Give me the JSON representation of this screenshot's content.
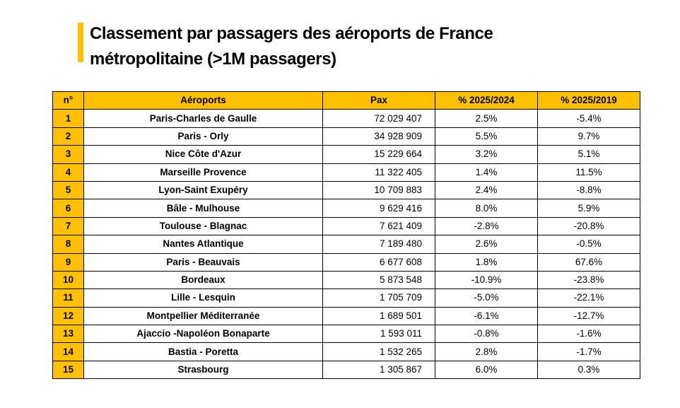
{
  "title": {
    "line1": "Classement par passagers des aéroports de France",
    "line2": "métropolitaine (>1M passagers)",
    "accent_color": "#FFC000"
  },
  "table": {
    "headers": [
      "n°",
      "Aéroports",
      "Pax",
      "% 2025/2024",
      "% 2025/2019"
    ],
    "rows": [
      [
        "1",
        "Paris-Charles de Gaulle",
        "72 029 407",
        "2.5%",
        "-5.4%"
      ],
      [
        "2",
        "Paris - Orly",
        "34 928 909",
        "5.5%",
        "9.7%"
      ],
      [
        "3",
        "Nice Côte d'Azur",
        "15 229 664",
        "3.2%",
        "5.1%"
      ],
      [
        "4",
        "Marseille Provence",
        "11 322 405",
        "1.4%",
        "11.5%"
      ],
      [
        "5",
        "Lyon-Saint Exupéry",
        "10 709 883",
        "2.4%",
        "-8.8%"
      ],
      [
        "6",
        "Bâle - Mulhouse",
        "9 629 416",
        "8.0%",
        "5.9%"
      ],
      [
        "7",
        "Toulouse - Blagnac",
        "7 621 409",
        "-2.8%",
        "-20.8%"
      ],
      [
        "8",
        "Nantes Atlantique",
        "7 189 480",
        "2.6%",
        "-0.5%"
      ],
      [
        "9",
        "Paris - Beauvais",
        "6 677 608",
        "1.8%",
        "67.6%"
      ],
      [
        "10",
        "Bordeaux",
        "5 873 548",
        "-10.9%",
        "-23.8%"
      ],
      [
        "11",
        "Lille - Lesquin",
        "1 705 709",
        "-5.0%",
        "-22.1%"
      ],
      [
        "12",
        "Montpellier Méditerranée",
        "1 689 501",
        "-6.1%",
        "-12.7%"
      ],
      [
        "13",
        "Ajaccio -Napoléon Bonaparte",
        "1 593 011",
        "-0.8%",
        "-1.6%"
      ],
      [
        "14",
        "Bastia - Poretta",
        "1 532 265",
        "2.8%",
        "-1.7%"
      ],
      [
        "15",
        "Strasbourg",
        "1 305 867",
        "6.0%",
        "0.3%"
      ]
    ]
  }
}
